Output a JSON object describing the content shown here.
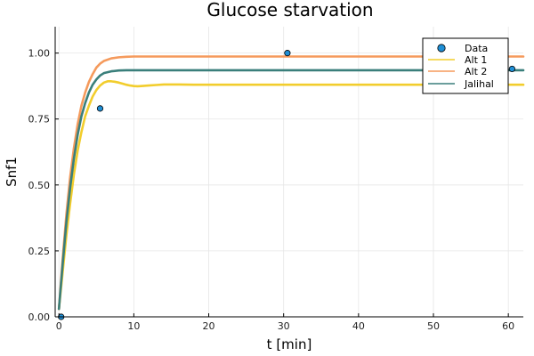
{
  "chart_data": {
    "type": "line",
    "title": "Glucose starvation",
    "xlabel": "t [min]",
    "ylabel": "Snf1",
    "xlim": [
      -0.5,
      62
    ],
    "ylim": [
      0,
      1.1
    ],
    "x_ticks": [
      0,
      10,
      20,
      30,
      40,
      50,
      60
    ],
    "x_tick_labels": [
      "0",
      "10",
      "20",
      "30",
      "40",
      "50",
      "60"
    ],
    "y_ticks": [
      0,
      0.25,
      0.5,
      0.75,
      1.0
    ],
    "y_tick_labels": [
      "0.00",
      "0.25",
      "0.50",
      "0.75",
      "1.00"
    ],
    "grid": true,
    "legend_position": "top-right",
    "scatter": {
      "name": "Data",
      "color": "#1f8fd6",
      "points": [
        {
          "x": 0.3,
          "y": 0.0
        },
        {
          "x": 5.5,
          "y": 0.79
        },
        {
          "x": 30.5,
          "y": 1.0
        },
        {
          "x": 60.5,
          "y": 0.94
        }
      ]
    },
    "series": [
      {
        "name": "Alt 1",
        "color": "#f2cd2c",
        "x": [
          0,
          0.5,
          1,
          1.5,
          2,
          2.5,
          3,
          3.5,
          4,
          4.5,
          5,
          5.5,
          6,
          6.5,
          7,
          7.5,
          8,
          8.5,
          9,
          9.5,
          10,
          10.5,
          11,
          12,
          13,
          14,
          15,
          16,
          18,
          20,
          25,
          30,
          40,
          50,
          60,
          62
        ],
        "y": [
          0.03,
          0.17,
          0.31,
          0.43,
          0.54,
          0.63,
          0.7,
          0.76,
          0.8,
          0.835,
          0.86,
          0.877,
          0.888,
          0.893,
          0.893,
          0.891,
          0.888,
          0.884,
          0.88,
          0.877,
          0.875,
          0.874,
          0.875,
          0.877,
          0.879,
          0.881,
          0.881,
          0.881,
          0.88,
          0.88,
          0.88,
          0.88,
          0.88,
          0.88,
          0.88,
          0.88
        ]
      },
      {
        "name": "Alt 2",
        "color": "#f59a5c",
        "x": [
          0,
          0.5,
          1,
          1.5,
          2,
          2.5,
          3,
          3.5,
          4,
          4.5,
          5,
          5.5,
          6,
          7,
          8,
          9,
          10,
          12,
          15,
          20,
          30,
          40,
          50,
          60,
          62
        ],
        "y": [
          0.03,
          0.22,
          0.39,
          0.53,
          0.64,
          0.73,
          0.8,
          0.85,
          0.89,
          0.92,
          0.945,
          0.96,
          0.97,
          0.98,
          0.984,
          0.986,
          0.987,
          0.987,
          0.987,
          0.987,
          0.987,
          0.987,
          0.987,
          0.987,
          0.987
        ]
      },
      {
        "name": "Jalihal",
        "color": "#3a7f7b",
        "x": [
          0,
          0.5,
          1,
          1.5,
          2,
          2.5,
          3,
          3.5,
          4,
          4.5,
          5,
          5.5,
          6,
          7,
          8,
          9,
          10,
          12,
          15,
          20,
          30,
          40,
          50,
          60,
          62
        ],
        "y": [
          0.03,
          0.2,
          0.36,
          0.49,
          0.6,
          0.69,
          0.76,
          0.81,
          0.85,
          0.88,
          0.9,
          0.915,
          0.924,
          0.931,
          0.934,
          0.935,
          0.935,
          0.935,
          0.935,
          0.935,
          0.935,
          0.935,
          0.935,
          0.935,
          0.935
        ]
      }
    ]
  }
}
